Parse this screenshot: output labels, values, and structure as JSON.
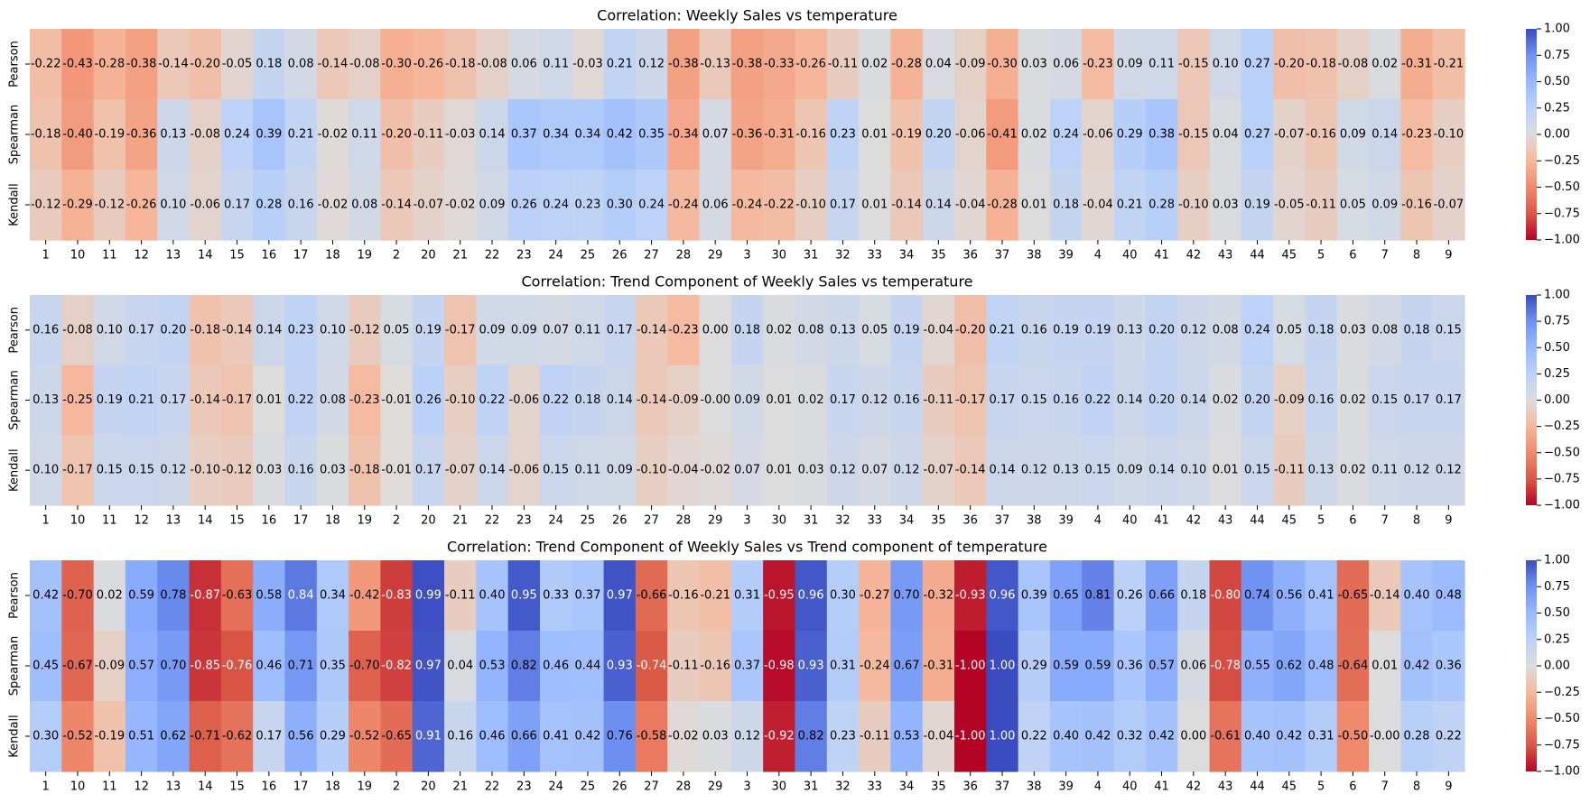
{
  "chart_data": [
    {
      "type": "heatmap",
      "title": "Correlation: Weekly Sales vs temperature",
      "rows": [
        "Pearson",
        "Spearman",
        "Kendall"
      ],
      "columns": [
        "1",
        "10",
        "11",
        "12",
        "13",
        "14",
        "15",
        "16",
        "17",
        "18",
        "19",
        "2",
        "20",
        "21",
        "22",
        "23",
        "24",
        "25",
        "26",
        "27",
        "28",
        "29",
        "3",
        "30",
        "31",
        "32",
        "33",
        "34",
        "35",
        "36",
        "37",
        "38",
        "39",
        "4",
        "40",
        "41",
        "42",
        "43",
        "44",
        "45",
        "5",
        "6",
        "7",
        "8",
        "9"
      ],
      "values": [
        [
          -0.22,
          -0.43,
          -0.28,
          -0.38,
          -0.14,
          -0.2,
          -0.05,
          0.18,
          0.08,
          -0.14,
          -0.08,
          -0.3,
          -0.26,
          -0.18,
          -0.08,
          0.06,
          0.11,
          -0.03,
          0.21,
          0.12,
          -0.38,
          -0.13,
          -0.38,
          -0.33,
          -0.26,
          -0.11,
          0.02,
          -0.28,
          0.04,
          -0.09,
          -0.3,
          0.03,
          0.06,
          -0.23,
          0.09,
          0.11,
          -0.15,
          0.1,
          0.27,
          -0.2,
          -0.18,
          -0.08,
          0.02,
          -0.31,
          -0.21
        ],
        [
          -0.18,
          -0.4,
          -0.19,
          -0.36,
          0.13,
          -0.08,
          0.24,
          0.39,
          0.21,
          -0.02,
          0.11,
          -0.2,
          -0.11,
          -0.03,
          0.14,
          0.37,
          0.34,
          0.34,
          0.42,
          0.35,
          -0.34,
          0.07,
          -0.36,
          -0.31,
          -0.16,
          0.23,
          0.01,
          -0.19,
          0.2,
          -0.06,
          -0.41,
          0.02,
          0.24,
          -0.06,
          0.29,
          0.38,
          -0.15,
          0.04,
          0.27,
          -0.07,
          -0.16,
          0.09,
          0.14,
          -0.23,
          -0.1
        ],
        [
          -0.12,
          -0.29,
          -0.12,
          -0.26,
          0.1,
          -0.06,
          0.17,
          0.28,
          0.16,
          -0.02,
          0.08,
          -0.14,
          -0.07,
          -0.02,
          0.09,
          0.26,
          0.24,
          0.23,
          0.3,
          0.24,
          -0.24,
          0.06,
          -0.24,
          -0.22,
          -0.1,
          0.17,
          0.01,
          -0.14,
          0.14,
          -0.04,
          -0.28,
          0.01,
          0.18,
          -0.04,
          0.21,
          0.28,
          -0.1,
          0.03,
          0.19,
          -0.05,
          -0.11,
          0.05,
          0.09,
          -0.16,
          -0.07
        ]
      ],
      "vmin": -1,
      "vmax": 1,
      "colorbar_ticks": [
        "1.00",
        "0.75",
        "0.50",
        "0.25",
        "0.00",
        "−0.25",
        "−0.50",
        "−0.75",
        "−1.00"
      ],
      "colormap": "coolwarm_r"
    },
    {
      "type": "heatmap",
      "title": "Correlation: Trend Component of Weekly Sales vs temperature",
      "rows": [
        "Pearson",
        "Spearman",
        "Kendall"
      ],
      "columns": [
        "1",
        "10",
        "11",
        "12",
        "13",
        "14",
        "15",
        "16",
        "17",
        "18",
        "19",
        "2",
        "20",
        "21",
        "22",
        "23",
        "24",
        "25",
        "26",
        "27",
        "28",
        "29",
        "3",
        "30",
        "31",
        "32",
        "33",
        "34",
        "35",
        "36",
        "37",
        "38",
        "39",
        "4",
        "40",
        "41",
        "42",
        "43",
        "44",
        "45",
        "5",
        "6",
        "7",
        "8",
        "9"
      ],
      "values": [
        [
          0.16,
          -0.08,
          0.1,
          0.17,
          0.2,
          -0.18,
          -0.14,
          0.14,
          0.23,
          0.1,
          -0.12,
          0.05,
          0.19,
          -0.17,
          0.09,
          0.09,
          0.07,
          0.11,
          0.17,
          -0.14,
          -0.23,
          0.0,
          0.18,
          0.02,
          0.08,
          0.13,
          0.05,
          0.19,
          -0.04,
          -0.2,
          0.21,
          0.16,
          0.19,
          0.19,
          0.13,
          0.2,
          0.12,
          0.08,
          0.24,
          0.05,
          0.18,
          0.03,
          0.08,
          0.18,
          0.15
        ],
        [
          0.13,
          -0.25,
          0.19,
          0.21,
          0.17,
          -0.14,
          -0.17,
          0.01,
          0.22,
          0.08,
          -0.23,
          -0.01,
          0.26,
          -0.1,
          0.22,
          -0.06,
          0.22,
          0.18,
          0.14,
          -0.14,
          -0.09,
          -0.0,
          0.09,
          0.01,
          0.02,
          0.17,
          0.12,
          0.16,
          -0.11,
          -0.17,
          0.17,
          0.15,
          0.16,
          0.22,
          0.14,
          0.2,
          0.14,
          0.02,
          0.2,
          -0.09,
          0.16,
          0.02,
          0.15,
          0.17,
          0.17
        ],
        [
          0.1,
          -0.17,
          0.15,
          0.15,
          0.12,
          -0.1,
          -0.12,
          0.03,
          0.16,
          0.03,
          -0.18,
          -0.01,
          0.17,
          -0.07,
          0.14,
          -0.06,
          0.15,
          0.11,
          0.09,
          -0.1,
          -0.04,
          -0.02,
          0.07,
          0.01,
          0.03,
          0.12,
          0.07,
          0.12,
          -0.07,
          -0.14,
          0.14,
          0.12,
          0.13,
          0.15,
          0.09,
          0.14,
          0.1,
          0.01,
          0.15,
          -0.11,
          0.13,
          0.02,
          0.11,
          0.12,
          0.12
        ]
      ],
      "vmin": -1,
      "vmax": 1,
      "colorbar_ticks": [
        "1.00",
        "0.75",
        "0.50",
        "0.25",
        "0.00",
        "−0.25",
        "−0.50",
        "−0.75",
        "−1.00"
      ],
      "colormap": "coolwarm_r"
    },
    {
      "type": "heatmap",
      "title": "Correlation: Trend Component of Weekly Sales vs Trend component of temperature",
      "rows": [
        "Pearson",
        "Spearman",
        "Kendall"
      ],
      "columns": [
        "1",
        "10",
        "11",
        "12",
        "13",
        "14",
        "15",
        "16",
        "17",
        "18",
        "19",
        "2",
        "20",
        "21",
        "22",
        "23",
        "24",
        "25",
        "26",
        "27",
        "28",
        "29",
        "3",
        "30",
        "31",
        "32",
        "33",
        "34",
        "35",
        "36",
        "37",
        "38",
        "39",
        "4",
        "40",
        "41",
        "42",
        "43",
        "44",
        "45",
        "5",
        "6",
        "7",
        "8",
        "9"
      ],
      "values": [
        [
          0.42,
          -0.7,
          0.02,
          0.59,
          0.78,
          -0.87,
          -0.63,
          0.58,
          0.84,
          0.34,
          -0.42,
          -0.83,
          0.99,
          -0.11,
          0.4,
          0.95,
          0.33,
          0.37,
          0.97,
          -0.66,
          -0.16,
          -0.21,
          0.31,
          -0.95,
          0.96,
          0.3,
          -0.27,
          0.7,
          -0.32,
          -0.93,
          0.96,
          0.39,
          0.65,
          0.81,
          0.26,
          0.66,
          0.18,
          -0.8,
          0.74,
          0.56,
          0.41,
          -0.65,
          -0.14,
          0.4,
          0.48
        ],
        [
          0.45,
          -0.67,
          -0.09,
          0.57,
          0.7,
          -0.85,
          -0.76,
          0.46,
          0.71,
          0.35,
          -0.7,
          -0.82,
          0.97,
          0.04,
          0.53,
          0.82,
          0.46,
          0.44,
          0.93,
          -0.74,
          -0.11,
          -0.16,
          0.37,
          -0.98,
          0.93,
          0.31,
          -0.24,
          0.67,
          -0.31,
          -1.0,
          1.0,
          0.29,
          0.59,
          0.59,
          0.36,
          0.57,
          0.06,
          -0.78,
          0.55,
          0.62,
          0.48,
          -0.64,
          0.01,
          0.42,
          0.36
        ],
        [
          0.3,
          -0.52,
          -0.19,
          0.51,
          0.62,
          -0.71,
          -0.62,
          0.17,
          0.56,
          0.29,
          -0.52,
          -0.65,
          0.91,
          0.16,
          0.46,
          0.66,
          0.41,
          0.42,
          0.76,
          -0.58,
          -0.02,
          0.03,
          0.12,
          -0.92,
          0.82,
          0.23,
          -0.11,
          0.53,
          -0.04,
          -1.0,
          1.0,
          0.22,
          0.4,
          0.42,
          0.32,
          0.42,
          0.0,
          -0.61,
          0.4,
          0.42,
          0.31,
          -0.5,
          -0.0,
          0.28,
          0.22
        ]
      ],
      "vmin": -1,
      "vmax": 1,
      "colorbar_ticks": [
        "1.00",
        "0.75",
        "0.50",
        "0.25",
        "0.00",
        "−0.25",
        "−0.50",
        "−0.75",
        "−1.00"
      ],
      "colormap": "coolwarm_r"
    }
  ]
}
